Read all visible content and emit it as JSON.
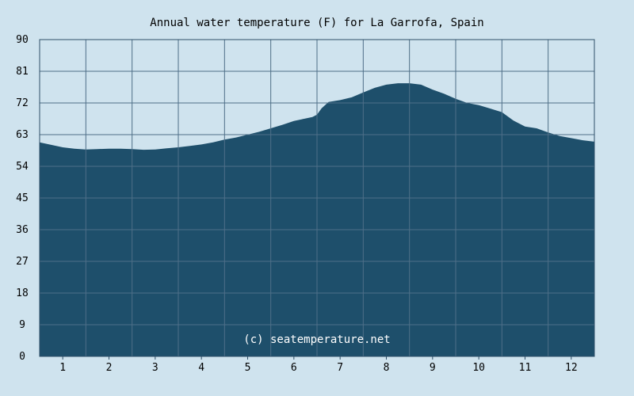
{
  "chart_data": {
    "type": "area",
    "title": "Annual water temperature (F) for La Garrofa, Spain",
    "xlabel": "",
    "ylabel": "",
    "ylim": [
      0,
      90
    ],
    "yticks": [
      "0",
      "9",
      "18",
      "27",
      "36",
      "45",
      "54",
      "63",
      "72",
      "81",
      "90"
    ],
    "xticks": [
      "1",
      "2",
      "3",
      "4",
      "5",
      "6",
      "7",
      "8",
      "9",
      "10",
      "11",
      "12"
    ],
    "grid": true,
    "watermark": "(c) seatemperature.net",
    "colors": {
      "background": "#cfe3ee",
      "area": "#1e4f6b",
      "grid": "#4f6f88",
      "axis": "#2f4f68"
    },
    "series": [
      {
        "x": [
          0.5,
          0.75,
          1.0,
          1.25,
          1.5,
          1.75,
          2.0,
          2.25,
          2.5,
          2.75,
          3.0,
          3.25,
          3.5,
          3.75,
          4.0,
          4.25,
          4.5,
          4.75,
          5.0,
          5.25,
          5.5,
          5.75,
          6.0,
          6.25,
          6.4,
          6.5,
          6.6,
          6.75,
          7.0,
          7.25,
          7.5,
          7.75,
          8.0,
          8.25,
          8.5,
          8.75,
          9.0,
          9.25,
          9.5,
          9.75,
          10.0,
          10.25,
          10.5,
          10.75,
          11.0,
          11.25,
          11.5,
          11.75,
          12.0,
          12.25,
          12.5
        ],
        "values": [
          60.8,
          60.1,
          59.4,
          59.0,
          58.8,
          58.9,
          59.0,
          59.0,
          58.9,
          58.7,
          58.8,
          59.1,
          59.4,
          59.8,
          60.2,
          60.8,
          61.6,
          62.2,
          63.0,
          63.8,
          64.8,
          65.8,
          66.9,
          67.6,
          68.0,
          68.7,
          70.5,
          72.3,
          72.8,
          73.6,
          75.0,
          76.3,
          77.2,
          77.6,
          77.6,
          77.2,
          75.8,
          74.6,
          73.2,
          72.0,
          71.4,
          70.4,
          69.4,
          67.0,
          65.3,
          64.8,
          63.6,
          62.6,
          62.0,
          61.4,
          61.0
        ]
      }
    ]
  }
}
